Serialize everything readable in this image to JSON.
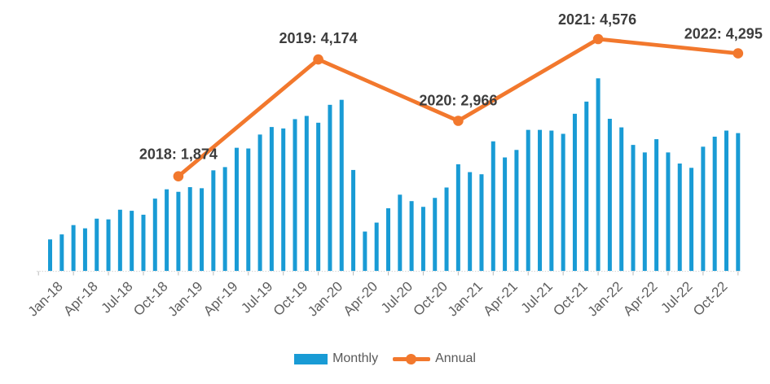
{
  "chart_data": {
    "type": "bar",
    "title": "",
    "grid": false,
    "y_axis_visible": false,
    "legend_position": "bottom",
    "x_tick_labels": [
      "Jan-18",
      "Apr-18",
      "Jul-18",
      "Oct-18",
      "Jan-19",
      "Apr-19",
      "Jul-19",
      "Oct-19",
      "Jan-20",
      "Apr-20",
      "Jul-20",
      "Oct-20",
      "Jan-21",
      "Apr-21",
      "Jul-21",
      "Oct-21",
      "Jan-22",
      "Apr-22",
      "Jul-22",
      "Oct-22"
    ],
    "series": [
      {
        "name": "Monthly",
        "type": "bar",
        "color": "#199bd5",
        "ylim": [
          0,
          550
        ],
        "x": [
          "Jan-18",
          "Feb-18",
          "Mar-18",
          "Apr-18",
          "May-18",
          "Jun-18",
          "Jul-18",
          "Aug-18",
          "Sep-18",
          "Oct-18",
          "Nov-18",
          "Dec-18",
          "Jan-19",
          "Feb-19",
          "Mar-19",
          "Apr-19",
          "May-19",
          "Jun-19",
          "Jul-19",
          "Aug-19",
          "Sep-19",
          "Oct-19",
          "Nov-19",
          "Dec-19",
          "Jan-20",
          "Feb-20",
          "Mar-20",
          "Apr-20",
          "May-20",
          "Jun-20",
          "Jul-20",
          "Aug-20",
          "Sep-20",
          "Oct-20",
          "Nov-20",
          "Dec-20",
          "Jan-21",
          "Feb-21",
          "Mar-21",
          "Apr-21",
          "May-21",
          "Jun-21",
          "Jul-21",
          "Aug-21",
          "Sep-21",
          "Oct-21",
          "Nov-21",
          "Dec-21",
          "Jan-22",
          "Feb-22",
          "Mar-22",
          "Apr-22",
          "May-22",
          "Jun-22",
          "Jul-22",
          "Aug-22",
          "Sep-22",
          "Oct-22",
          "Nov-22",
          "Dec-22"
        ],
        "values": [
          88,
          102,
          128,
          119,
          146,
          144,
          171,
          168,
          157,
          202,
          228,
          221,
          234,
          231,
          281,
          290,
          344,
          342,
          381,
          402,
          398,
          424,
          433,
          414,
          464,
          478,
          282,
          110,
          135,
          175,
          213,
          195,
          179,
          204,
          233,
          298,
          276,
          270,
          362,
          317,
          338,
          394,
          394,
          392,
          383,
          439,
          473,
          538,
          425,
          401,
          352,
          331,
          368,
          331,
          300,
          288,
          347,
          375,
          392,
          385
        ]
      },
      {
        "name": "Annual",
        "type": "line",
        "color": "#f2782d",
        "ylim": [
          0,
          5300
        ],
        "x": [
          "Dec-18",
          "Dec-19",
          "Dec-20",
          "Dec-21",
          "Dec-22"
        ],
        "years": [
          "2018",
          "2019",
          "2020",
          "2021",
          "2022"
        ],
        "values": [
          1874,
          4174,
          2966,
          4576,
          4295
        ],
        "point_labels": [
          "2018: 1,874",
          "2019: 4,174",
          "2020: 2,966",
          "2021: 4,576",
          "2022: 4,295"
        ]
      }
    ]
  },
  "colors": {
    "bar_blue": "#199bd5",
    "line_orange": "#f2782d",
    "data_label_text": "#3d3d3d",
    "axis_label_text": "#5f5f5f",
    "legend_text": "#595959",
    "axis_line": "#d9d9d9",
    "tick": "#b9b9b9",
    "background": "#ffffff"
  },
  "legend": {
    "items": [
      {
        "label": "Monthly",
        "swatch": "bar-swatch"
      },
      {
        "label": "Annual",
        "swatch": "line-dot-swatch"
      }
    ]
  }
}
